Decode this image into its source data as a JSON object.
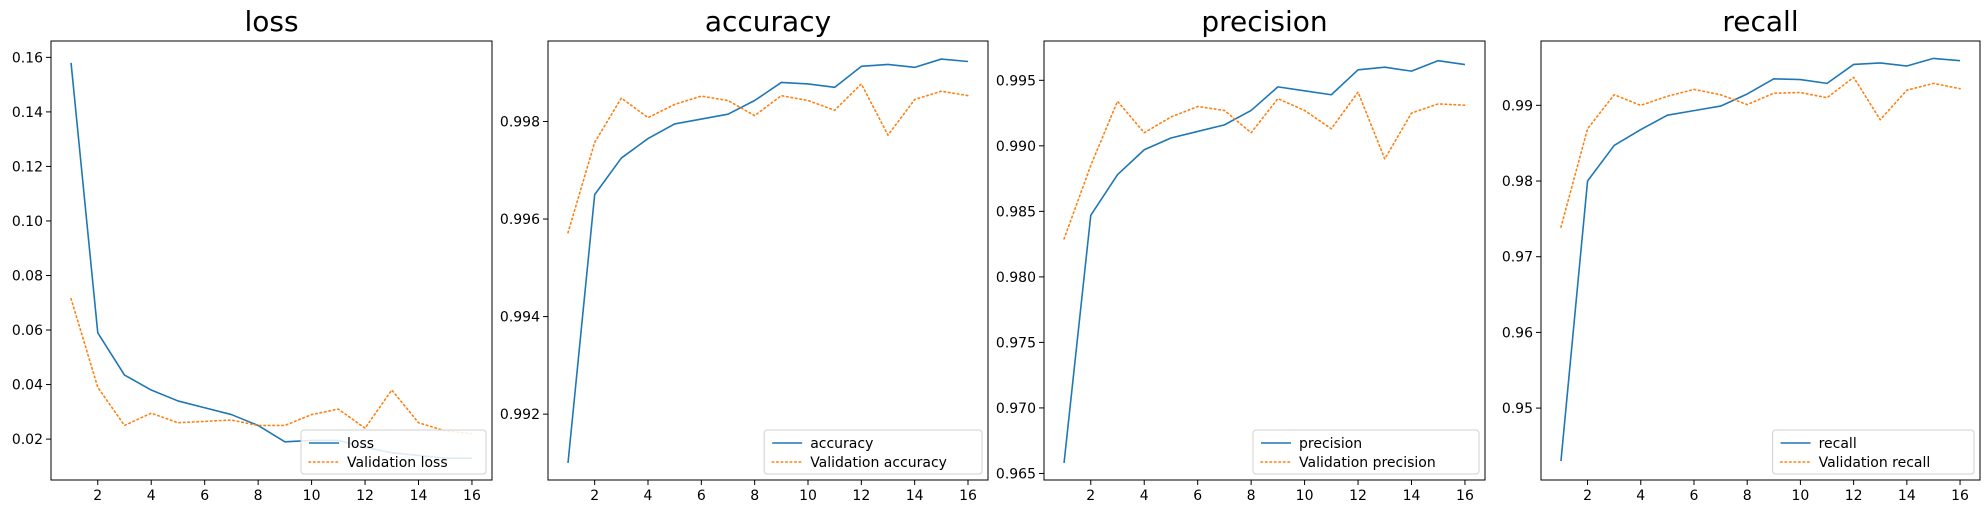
{
  "chart_data": [
    {
      "type": "line",
      "title": "loss",
      "xlabel": "",
      "ylabel": "",
      "x": [
        1,
        2,
        3,
        4,
        5,
        6,
        7,
        8,
        9,
        10,
        11,
        12,
        13,
        14,
        15,
        16
      ],
      "xlim": [
        0.25,
        16.75
      ],
      "ylim": [
        0.005,
        0.166
      ],
      "xticks": [
        2,
        4,
        6,
        8,
        10,
        12,
        14,
        16
      ],
      "yticks": [
        0.02,
        0.04,
        0.06,
        0.08,
        0.1,
        0.12,
        0.14,
        0.16
      ],
      "ytick_labels": [
        "0.02",
        "0.04",
        "0.06",
        "0.08",
        "0.10",
        "0.12",
        "0.14",
        "0.16"
      ],
      "legend_position": "lower-right",
      "grid": false,
      "series": [
        {
          "name": "loss",
          "style": "solid",
          "color": "#1f77b4",
          "values": [
            0.158,
            0.059,
            0.0435,
            0.038,
            0.034,
            0.0315,
            0.029,
            0.025,
            0.019,
            0.0195,
            0.0195,
            0.017,
            0.015,
            0.014,
            0.013,
            0.013
          ]
        },
        {
          "name": "Validation loss",
          "style": "dotted",
          "color": "#ff7f0e",
          "values": [
            0.0715,
            0.039,
            0.025,
            0.0295,
            0.026,
            0.0265,
            0.027,
            0.025,
            0.025,
            0.029,
            0.031,
            0.024,
            0.038,
            0.026,
            0.023,
            0.022
          ]
        }
      ]
    },
    {
      "type": "line",
      "title": "accuracy",
      "xlabel": "",
      "ylabel": "",
      "x": [
        1,
        2,
        3,
        4,
        5,
        6,
        7,
        8,
        9,
        10,
        11,
        12,
        13,
        14,
        15,
        16
      ],
      "xlim": [
        0.25,
        16.75
      ],
      "ylim": [
        0.99065,
        0.99965
      ],
      "xticks": [
        2,
        4,
        6,
        8,
        10,
        12,
        14,
        16
      ],
      "yticks": [
        0.992,
        0.994,
        0.996,
        0.998
      ],
      "ytick_labels": [
        "0.992",
        "0.994",
        "0.996",
        "0.998"
      ],
      "legend_position": "lower-right",
      "grid": false,
      "series": [
        {
          "name": "accuracy",
          "style": "solid",
          "color": "#1f77b4",
          "values": [
            0.991,
            0.9965,
            0.99725,
            0.99765,
            0.99795,
            0.99805,
            0.99815,
            0.99843,
            0.9988,
            0.99877,
            0.9987,
            0.99913,
            0.99917,
            0.99911,
            0.99928,
            0.99923
          ]
        },
        {
          "name": "Validation accuracy",
          "style": "dotted",
          "color": "#ff7f0e",
          "values": [
            0.99572,
            0.99757,
            0.99848,
            0.99808,
            0.99835,
            0.99852,
            0.99843,
            0.99812,
            0.99853,
            0.99843,
            0.99823,
            0.99877,
            0.99772,
            0.99845,
            0.99862,
            0.99853
          ]
        }
      ]
    },
    {
      "type": "line",
      "title": "precision",
      "xlabel": "",
      "ylabel": "",
      "x": [
        1,
        2,
        3,
        4,
        5,
        6,
        7,
        8,
        9,
        10,
        11,
        12,
        13,
        14,
        15,
        16
      ],
      "xlim": [
        0.25,
        16.75
      ],
      "ylim": [
        0.9645,
        0.998
      ],
      "xticks": [
        2,
        4,
        6,
        8,
        10,
        12,
        14,
        16
      ],
      "yticks": [
        0.965,
        0.97,
        0.975,
        0.98,
        0.985,
        0.99,
        0.995
      ],
      "ytick_labels": [
        "0.965",
        "0.970",
        "0.975",
        "0.980",
        "0.985",
        "0.990",
        "0.995"
      ],
      "legend_position": "lower-right",
      "grid": false,
      "series": [
        {
          "name": "precision",
          "style": "solid",
          "color": "#1f77b4",
          "values": [
            0.9658,
            0.9847,
            0.9878,
            0.9897,
            0.9906,
            0.9911,
            0.9916,
            0.9927,
            0.9945,
            0.9942,
            0.9939,
            0.9958,
            0.996,
            0.9957,
            0.9965,
            0.9962
          ]
        },
        {
          "name": "Validation precision",
          "style": "dotted",
          "color": "#ff7f0e",
          "values": [
            0.9829,
            0.9885,
            0.9934,
            0.991,
            0.9922,
            0.993,
            0.9927,
            0.991,
            0.9936,
            0.9927,
            0.9913,
            0.9941,
            0.989,
            0.9925,
            0.9932,
            0.9931
          ]
        }
      ]
    },
    {
      "type": "line",
      "title": "recall",
      "xlabel": "",
      "ylabel": "",
      "x": [
        1,
        2,
        3,
        4,
        5,
        6,
        7,
        8,
        9,
        10,
        11,
        12,
        13,
        14,
        15,
        16
      ],
      "xlim": [
        0.25,
        16.75
      ],
      "ylim": [
        0.9405,
        0.9985
      ],
      "xticks": [
        2,
        4,
        6,
        8,
        10,
        12,
        14,
        16
      ],
      "yticks": [
        0.95,
        0.96,
        0.97,
        0.98,
        0.99
      ],
      "ytick_labels": [
        "0.95",
        "0.96",
        "0.97",
        "0.98",
        "0.99"
      ],
      "legend_position": "lower-right",
      "grid": false,
      "series": [
        {
          "name": "recall",
          "style": "solid",
          "color": "#1f77b4",
          "values": [
            0.943,
            0.98,
            0.9847,
            0.9868,
            0.9887,
            0.9893,
            0.9899,
            0.9915,
            0.9935,
            0.9934,
            0.9929,
            0.9954,
            0.9956,
            0.9952,
            0.9962,
            0.9959
          ]
        },
        {
          "name": "Validation recall",
          "style": "dotted",
          "color": "#ff7f0e",
          "values": [
            0.9739,
            0.9869,
            0.9914,
            0.99,
            0.9912,
            0.9921,
            0.9914,
            0.9901,
            0.9916,
            0.9917,
            0.991,
            0.9937,
            0.9881,
            0.992,
            0.9929,
            0.9922
          ]
        }
      ]
    }
  ]
}
